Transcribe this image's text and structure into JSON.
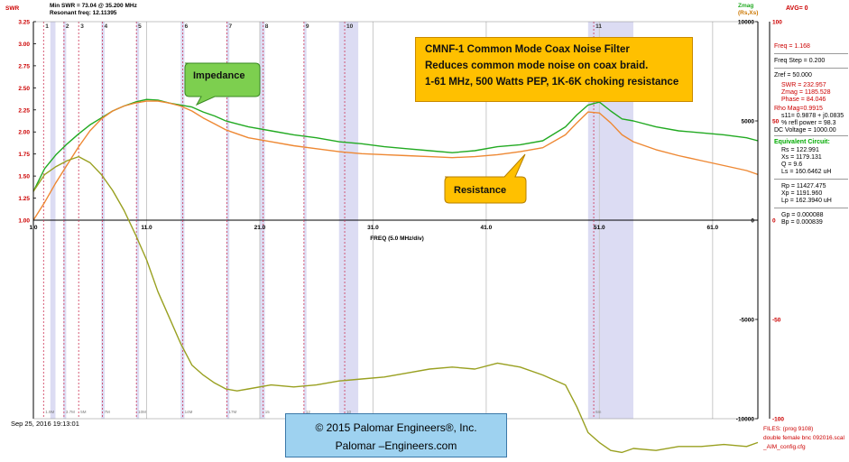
{
  "header": {
    "swr_axis_label": "SWR",
    "min_swr": "Min SWR = 73.04 @ 35.200 MHz",
    "resonant_freq": "Resonant freq: 12.11395",
    "zmag_label": "Zmag",
    "rsxs_label": "(Rs,Xs)",
    "avg": "AVG= 0"
  },
  "panel": {
    "freq": "Freq = 1.168",
    "freq_step": "Freq Step = 0.200",
    "zref": "Zref = 50.000",
    "swr": "SWR = 232.957",
    "zmag": "Zmag = 1185.528",
    "phase": "Phase = 84.046",
    "rho_mag": "Rho Mag=0.9915",
    "s11": "s11= 0.9878 + j0.0835",
    "refl_power": "% refl power = 98.3",
    "dc_voltage": "DC Voltage = 1000.00",
    "equiv_title": "Equivalent Circuit:",
    "rs": "Rs = 122.991",
    "xs": "Xs = 1179.131",
    "q": "Q = 9.6",
    "ls": "Ls = 160.6462 uH",
    "rp": "Rp = 11427.475",
    "xp": "Xp = 1191.960",
    "lp": "Lp = 162.3940 uH",
    "gp": "Gp = 0.000088",
    "bp": "Bp = 0.000839"
  },
  "footer": {
    "date": "Sep 25, 2016  19:13:01",
    "files_title": "FILES: (prog 9108)",
    "file1": "double female bnc 092016.scal",
    "file2": "_AIM_config.cfg"
  },
  "info_box": {
    "line1": "CMNF-1 Common Mode Coax Noise Filter",
    "line2": "Reduces common mode noise on coax braid.",
    "line3": "1-61 MHz, 500 Watts PEP, 1K-6K  choking resistance"
  },
  "callouts": {
    "impedance": "Impedance",
    "resistance": "Resistance"
  },
  "copyright": {
    "line1": "© 2015 Palomar Engineers®, Inc.",
    "line2": "Palomar –Engineers.com"
  },
  "colors": {
    "impedance": "#22aa22",
    "resistance": "#ee8833",
    "reactance": "#99a020",
    "markers": "#cc3355",
    "band_shade": "#dcdcf3",
    "grid": "#c9c9c9",
    "callout_green": "#7dcf4f",
    "callout_orange": "#ffc000",
    "copyright_blue": "#9ed2f0"
  },
  "chart_data": {
    "type": "line",
    "xlabel": "FREQ (5.0 MHz/div)",
    "xlim": [
      1.0,
      65.0
    ],
    "x_ticks": [
      "1.0",
      "11.0",
      "21.0",
      "31.0",
      "41.0",
      "51.0",
      "61.0"
    ],
    "left_axis": {
      "label": "SWR",
      "range": [
        1.0,
        3.25
      ],
      "ticks": [
        "3.25",
        "3.00",
        "2.75",
        "2.50",
        "2.25",
        "2.00",
        "1.75",
        "1.50",
        "1.25",
        "1.00"
      ]
    },
    "zmag_axis": {
      "label": "Zmag",
      "range": [
        -10000,
        10000
      ],
      "ticks": [
        "10000",
        "5000",
        "0",
        "-5000",
        "-10000"
      ]
    },
    "phase_axis": {
      "range": [
        -100,
        100
      ],
      "ticks": [
        "100",
        "50",
        "0",
        "-50",
        "-100"
      ]
    },
    "markers": [
      {
        "label": "1",
        "freq": 1.9,
        "bottom": "1.9M"
      },
      {
        "label": "2",
        "freq": 3.7,
        "bottom": "3.7M"
      },
      {
        "label": "3",
        "freq": 5.0,
        "bottom": "5M"
      },
      {
        "label": "4",
        "freq": 7.1,
        "bottom": "7M"
      },
      {
        "label": "5",
        "freq": 10.1,
        "bottom": "10M"
      },
      {
        "label": "6",
        "freq": 14.2,
        "bottom": "14M"
      },
      {
        "label": "7",
        "freq": 18.1,
        "bottom": "17M"
      },
      {
        "label": "8",
        "freq": 21.3,
        "bottom": "15"
      },
      {
        "label": "9",
        "freq": 24.9,
        "bottom": "12"
      },
      {
        "label": "10",
        "freq": 28.5,
        "bottom": "10"
      },
      {
        "label": "11",
        "freq": 50.5,
        "bottom": "6m"
      }
    ],
    "shaded_bands": [
      [
        2.5,
        2.95
      ],
      [
        3.65,
        3.9
      ],
      [
        7.0,
        7.3
      ],
      [
        10.1,
        10.15
      ],
      [
        14.0,
        14.35
      ],
      [
        18.07,
        18.17
      ],
      [
        21.0,
        21.45
      ],
      [
        24.89,
        24.99
      ],
      [
        28.0,
        29.7
      ],
      [
        50.0,
        54.0
      ]
    ],
    "series": [
      {
        "name": "Zmag",
        "color": "#22aa22",
        "x": [
          1.0,
          2,
          3,
          4,
          5,
          6,
          7,
          8,
          9,
          10,
          11,
          12,
          13,
          14,
          15,
          16,
          17,
          18,
          19,
          20,
          22,
          24,
          26,
          28,
          30,
          32,
          34,
          36,
          38,
          40,
          42,
          44,
          46,
          48,
          49,
          50,
          51,
          52,
          53,
          54,
          56,
          58,
          60,
          62,
          64,
          65
        ],
        "y": [
          1450,
          2600,
          3300,
          3850,
          4350,
          4800,
          5150,
          5500,
          5750,
          5950,
          6080,
          6050,
          5900,
          5800,
          5700,
          5450,
          5250,
          5000,
          4850,
          4700,
          4500,
          4300,
          4150,
          3950,
          3850,
          3700,
          3600,
          3500,
          3400,
          3500,
          3700,
          3800,
          4000,
          4700,
          5300,
          5800,
          5950,
          5500,
          5100,
          5000,
          4700,
          4500,
          4400,
          4300,
          4150,
          4000
        ]
      },
      {
        "name": "Rs",
        "color": "#ee8833",
        "x": [
          1.0,
          2,
          3,
          4,
          5,
          6,
          7,
          8,
          9,
          10,
          11,
          12,
          13,
          14,
          15,
          16,
          17,
          18,
          19,
          20,
          22,
          24,
          26,
          28,
          30,
          32,
          34,
          36,
          38,
          40,
          42,
          44,
          46,
          48,
          49,
          50,
          51,
          52,
          53,
          54,
          56,
          58,
          60,
          62,
          64,
          65
        ],
        "y": [
          0,
          900,
          1900,
          2800,
          3700,
          4500,
          5100,
          5500,
          5750,
          5900,
          6000,
          6000,
          5900,
          5750,
          5500,
          5150,
          4850,
          4550,
          4350,
          4150,
          3950,
          3750,
          3600,
          3450,
          3350,
          3300,
          3250,
          3200,
          3150,
          3200,
          3300,
          3450,
          3650,
          4300,
          4900,
          5450,
          5400,
          4900,
          4300,
          3950,
          3550,
          3250,
          3000,
          2750,
          2500,
          2300
        ]
      },
      {
        "name": "Xs",
        "color": "#99a020",
        "x": [
          1.0,
          2,
          3,
          4,
          5,
          6,
          7,
          8,
          9,
          10,
          11,
          12,
          13,
          14,
          15,
          16,
          17,
          18,
          19,
          20,
          22,
          24,
          26,
          28,
          30,
          32,
          34,
          36,
          38,
          40,
          42,
          44,
          46,
          48,
          49,
          50,
          51,
          52,
          53,
          54,
          56,
          58,
          60,
          62,
          64,
          65
        ],
        "y": [
          1450,
          2300,
          2700,
          3000,
          3200,
          2900,
          2300,
          1500,
          500,
          -700,
          -2000,
          -3600,
          -4900,
          -6200,
          -7300,
          -7800,
          -8200,
          -8500,
          -8600,
          -8500,
          -8300,
          -8400,
          -8300,
          -8100,
          -8000,
          -7900,
          -7700,
          -7500,
          -7400,
          -7500,
          -7200,
          -7400,
          -7800,
          -8300,
          -9400,
          -10700,
          -11200,
          -11600,
          -11700,
          -11500,
          -11600,
          -11400,
          -11400,
          -11300,
          -11400,
          -11200
        ]
      }
    ]
  }
}
